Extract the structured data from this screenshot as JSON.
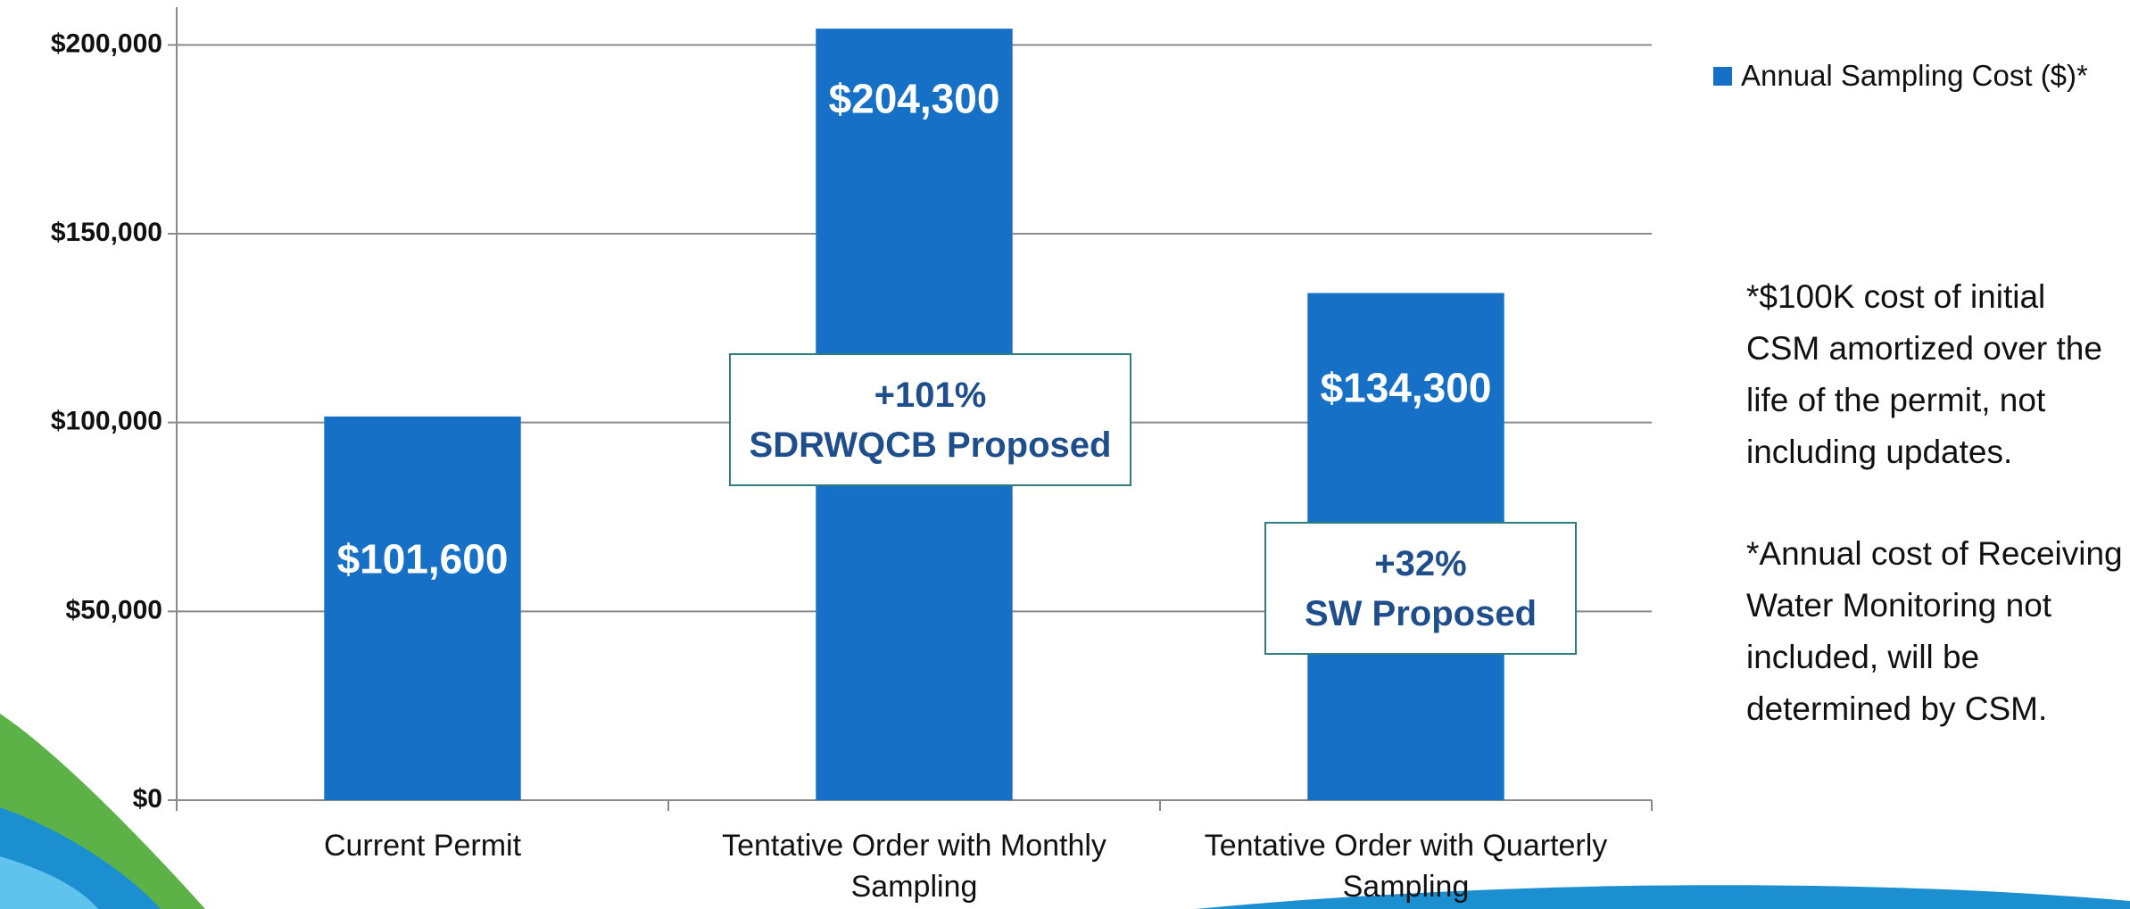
{
  "chart_data": {
    "type": "bar",
    "categories": [
      "Current Permit",
      "Tentative Order with Monthly Sampling",
      "Tentative Order with Quarterly Sampling"
    ],
    "series": [
      {
        "name": "Annual Sampling Cost ($)*",
        "color": "#1570c6",
        "values": [
          101600,
          204300,
          134300
        ],
        "value_labels": [
          "$101,600",
          "$204,300",
          "$134,300"
        ]
      }
    ],
    "ylim": [
      0,
      210000
    ],
    "yticks": [
      {
        "value": 0,
        "label": "$0"
      },
      {
        "value": 50000,
        "label": "$50,000"
      },
      {
        "value": 100000,
        "label": "$100,000"
      },
      {
        "value": 150000,
        "label": "$150,000"
      },
      {
        "value": 200000,
        "label": "$200,000"
      }
    ],
    "grid": true,
    "annotations": [
      {
        "lines": [
          "+101%",
          "SDRWQCB Proposed"
        ]
      },
      {
        "lines": [
          "+32%",
          "SW Proposed"
        ]
      }
    ],
    "notes": [
      "*$100K cost of initial CSM amortized over the life of the permit, not including updates.",
      "*Annual cost of Receiving Water Monitoring not included, will be determined by CSM."
    ]
  }
}
